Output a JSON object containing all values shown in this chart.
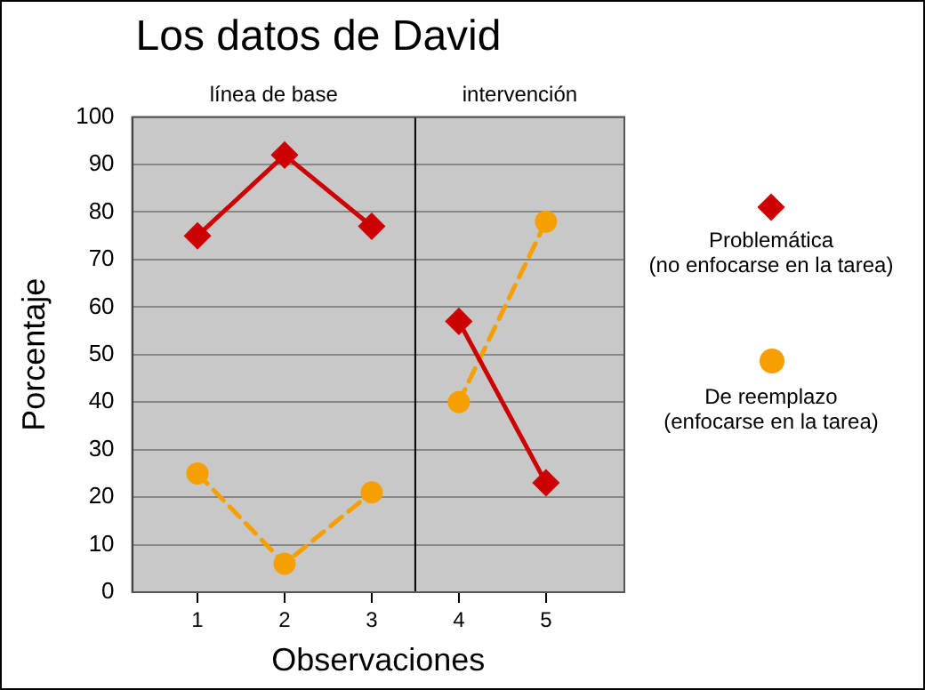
{
  "chart_data": {
    "type": "line",
    "title": "Los datos de David",
    "xlabel": "Observaciones",
    "ylabel": "Porcentaje",
    "x": [
      1,
      2,
      3,
      4,
      5
    ],
    "xlim": [
      0.25,
      5.9
    ],
    "xticks": [
      1,
      2,
      3,
      4,
      5
    ],
    "ylim": [
      0,
      100
    ],
    "yticks": [
      0,
      10,
      20,
      30,
      40,
      50,
      60,
      70,
      80,
      90,
      100
    ],
    "series": [
      {
        "name": "Problemática\n(no enfocarse en la tarea)",
        "color": "#cc0000",
        "values": [
          75,
          92,
          77,
          57,
          23
        ],
        "marker": "diamond",
        "line_style": "solid"
      },
      {
        "name": "De reemplazo\n(enfocarse en la tarea)",
        "color": "#f5a000",
        "values": [
          25,
          6,
          21,
          40,
          78
        ],
        "marker": "circle",
        "line_style": "dashed"
      }
    ],
    "ref_lines": [
      {
        "axis": "x",
        "value": 3.5,
        "color": "#000000"
      }
    ],
    "annotations": [
      "línea de base",
      "intervención"
    ],
    "grid": "y",
    "legend": "right"
  }
}
